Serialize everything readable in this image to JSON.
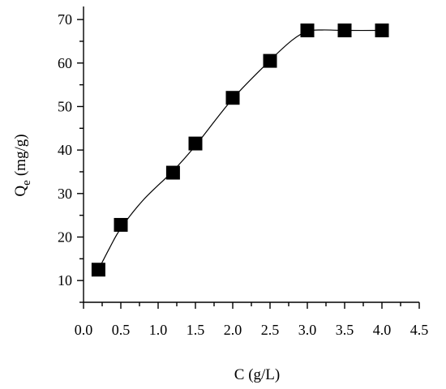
{
  "chart_data": {
    "type": "scatter",
    "title": "",
    "xlabel": "C (g/L)",
    "ylabel_main": "Q",
    "ylabel_sub": "e",
    "ylabel_units": "(mg/g)",
    "xlim": [
      0,
      4.5
    ],
    "ylim": [
      5,
      73
    ],
    "xticks": [
      0.0,
      0.5,
      1.0,
      1.5,
      2.0,
      2.5,
      3.0,
      3.5,
      4.0,
      4.5
    ],
    "xtick_labels": [
      "0.0",
      "0.5",
      "1.0",
      "1.5",
      "2.0",
      "2.5",
      "3.0",
      "3.5",
      "4.0",
      "4.5"
    ],
    "yticks": [
      10,
      20,
      30,
      40,
      50,
      60,
      70
    ],
    "ytick_labels": [
      "10",
      "20",
      "30",
      "40",
      "50",
      "60",
      "70"
    ],
    "grid": false,
    "legend": "none",
    "marker": "square",
    "series": [
      {
        "x": [
          0.2,
          0.5,
          1.2,
          1.5,
          2.0,
          2.5,
          3.0,
          3.5,
          4.0
        ],
        "y": [
          12.5,
          22.8,
          34.8,
          41.5,
          52.0,
          60.5,
          67.5,
          67.5,
          67.5
        ]
      }
    ],
    "fit_curve": {
      "x": [
        0.2,
        0.35,
        0.5,
        0.8,
        1.2,
        1.5,
        2.0,
        2.5,
        2.8,
        3.0,
        3.2,
        3.5,
        4.0
      ],
      "y": [
        12.5,
        17.5,
        22.0,
        28.5,
        35.2,
        41.0,
        51.8,
        60.6,
        65.3,
        67.3,
        67.6,
        67.5,
        67.5
      ]
    },
    "colors": {
      "marker": "#000000",
      "curve": "#000000",
      "axis": "#000000"
    }
  }
}
